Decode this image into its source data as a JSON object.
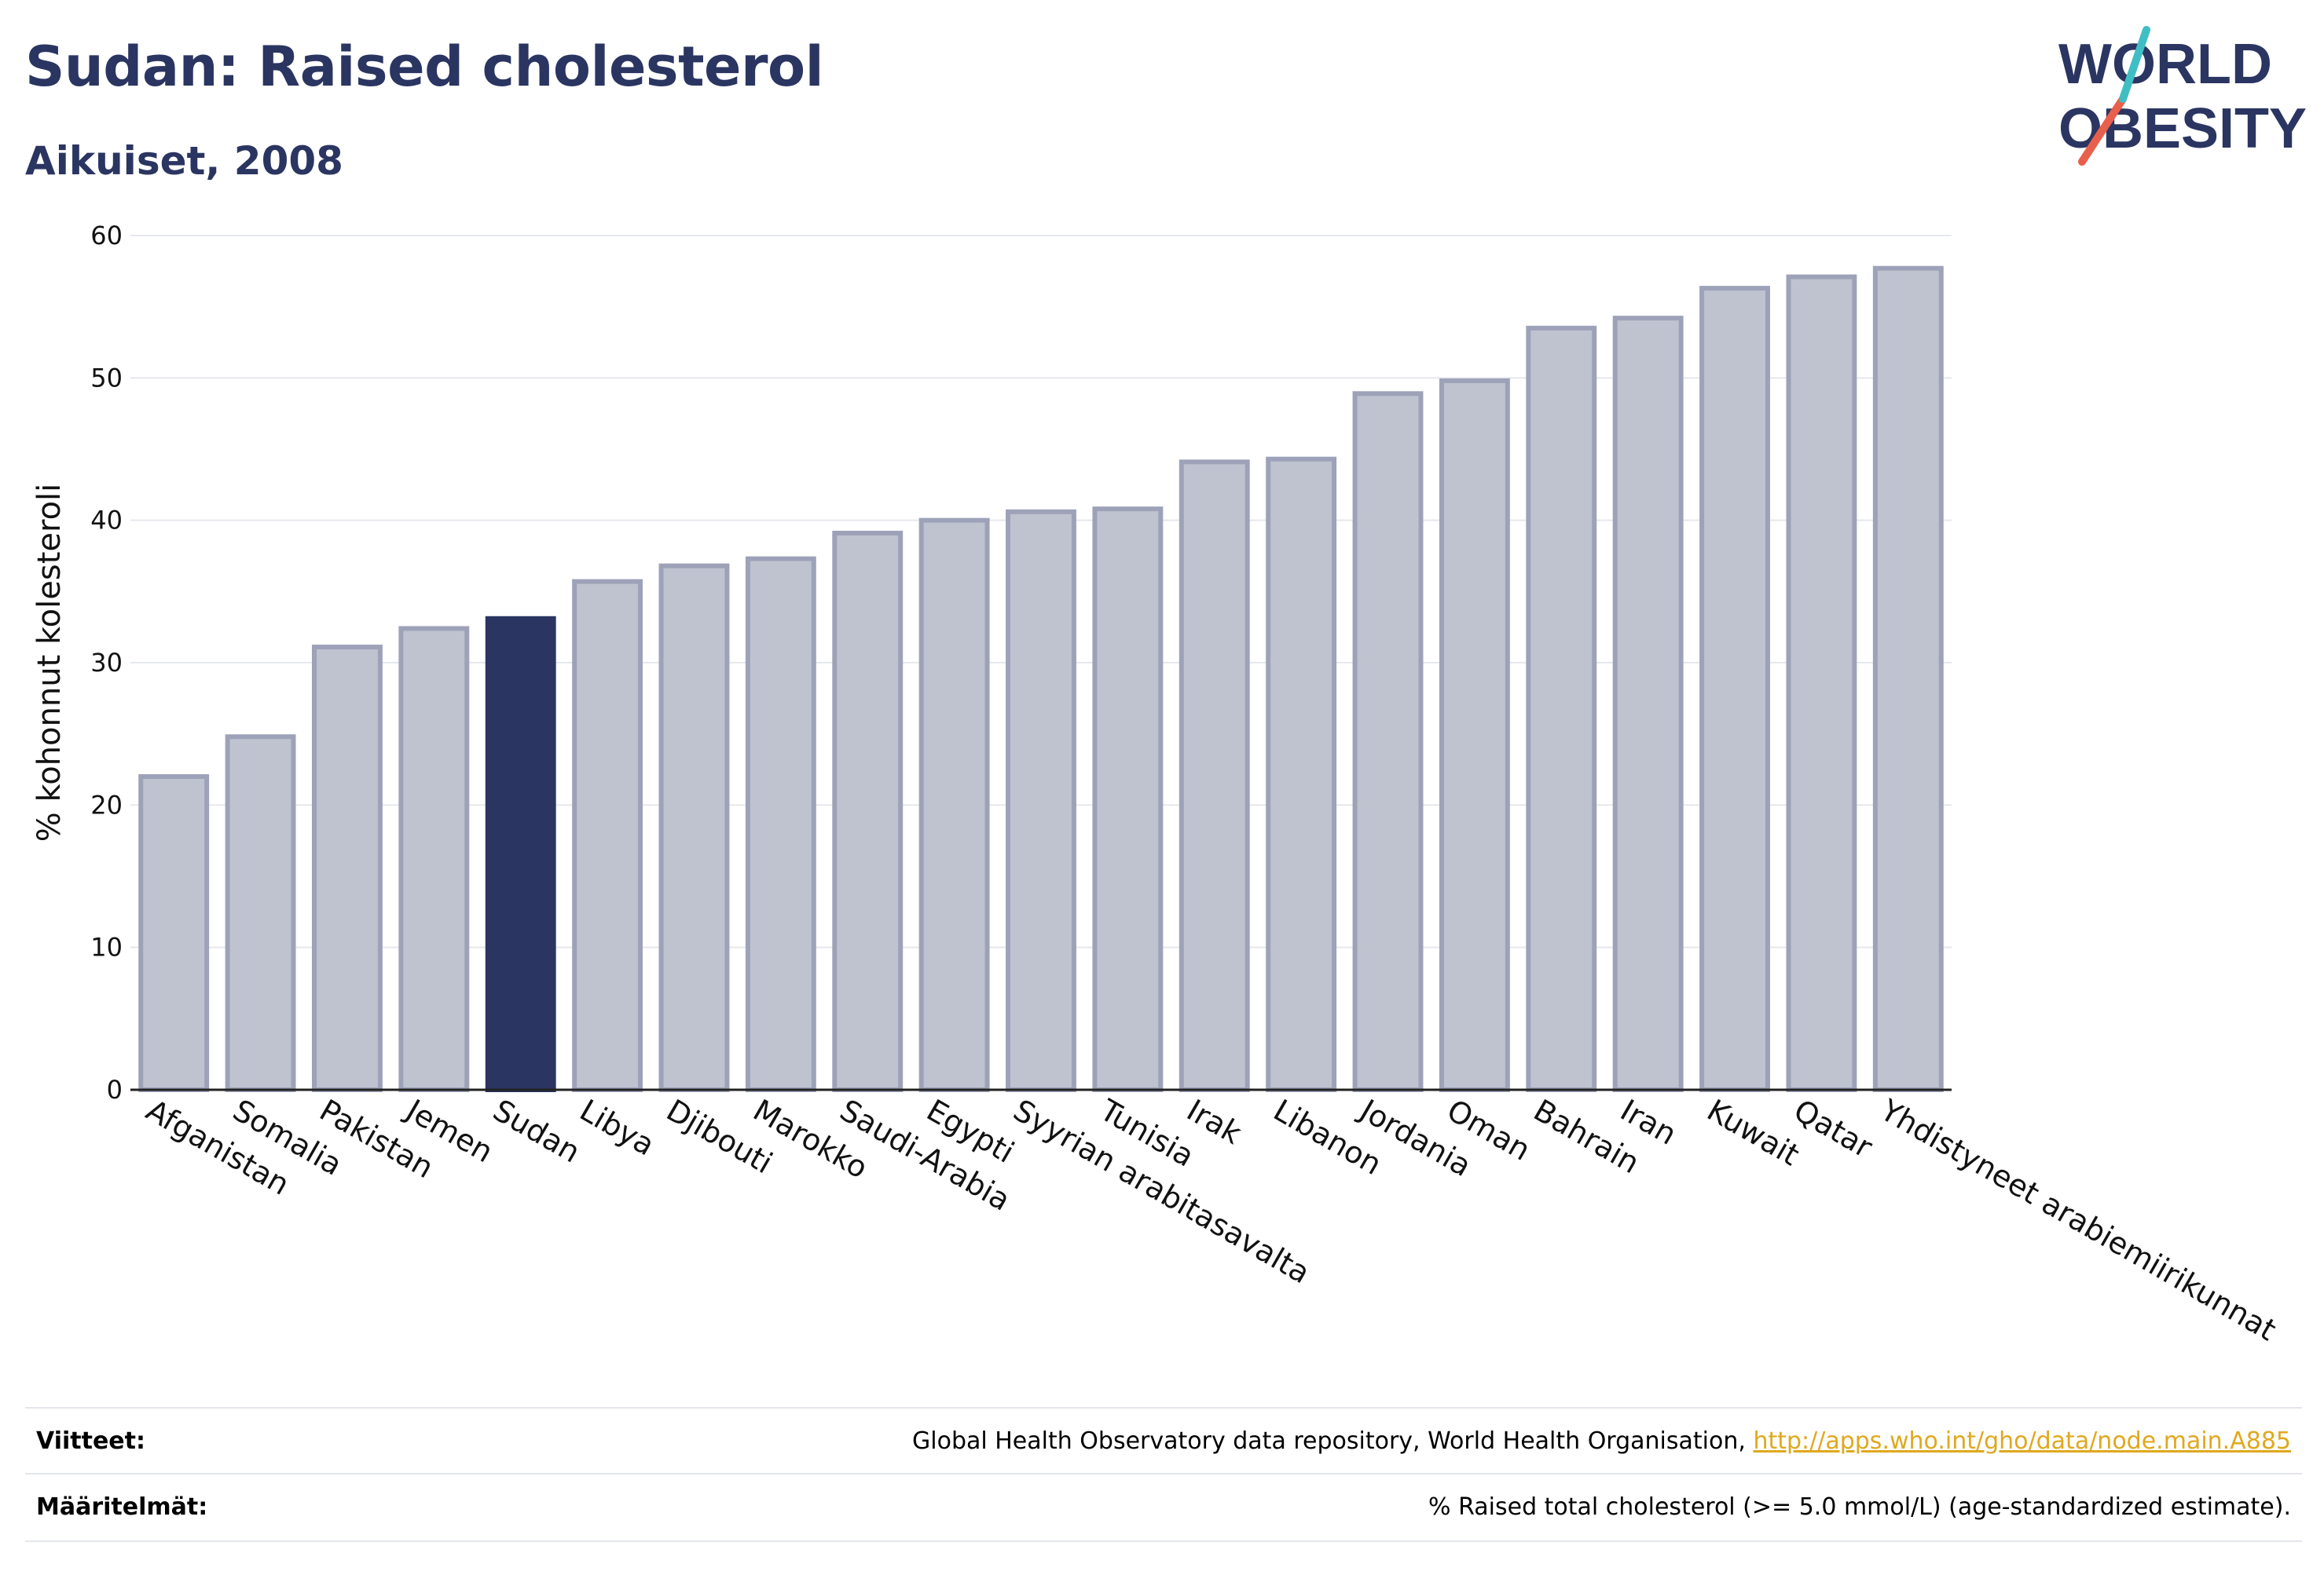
{
  "header": {
    "title": "Sudan: Raised cholesterol",
    "subtitle": "Aikuiset, 2008"
  },
  "logo": {
    "line1": "WORLD",
    "line2": "OBESITY",
    "color_text": "#2b3561",
    "color_accent_red": "#e8604c",
    "color_accent_teal": "#3fbfc4"
  },
  "chart_data": {
    "type": "bar",
    "title": "Sudan: Raised cholesterol",
    "subtitle": "Aikuiset, 2008",
    "xlabel": "",
    "ylabel": "% kohonnut kolesteroli",
    "ylim": [
      0,
      60
    ],
    "yticks": [
      0,
      10,
      20,
      30,
      40,
      50,
      60
    ],
    "grid": true,
    "highlight": "Sudan",
    "colors": {
      "default": "#bfc3d0",
      "default_border": "#9da2b8",
      "highlight": "#2b3561"
    },
    "categories": [
      "Afganistan",
      "Somalia",
      "Pakistan",
      "Jemen",
      "Sudan",
      "Libya",
      "Djibouti",
      "Marokko",
      "Saudi-Arabia",
      "Egypti",
      "Syyrian arabitasavalta",
      "Tunisia",
      "Irak",
      "Libanon",
      "Jordania",
      "Oman",
      "Bahrain",
      "Iran",
      "Kuwait",
      "Qatar",
      "Yhdistyneet arabiemiirikunnat"
    ],
    "values": [
      22.0,
      24.8,
      31.1,
      32.4,
      33.1,
      35.7,
      36.8,
      37.3,
      39.1,
      40.0,
      40.6,
      40.8,
      44.1,
      44.3,
      48.9,
      49.8,
      53.5,
      54.2,
      56.3,
      57.1,
      57.7
    ]
  },
  "footer": {
    "sources_label": "Viitteet:",
    "sources_text": "Global Health Observatory data repository, World Health Organisation, ",
    "sources_link": "http://apps.who.int/gho/data/node.main.A885",
    "definitions_label": "Määritelmät:",
    "definitions_text": "% Raised total cholesterol (>= 5.0 mmol/L) (age-standardized estimate)."
  }
}
